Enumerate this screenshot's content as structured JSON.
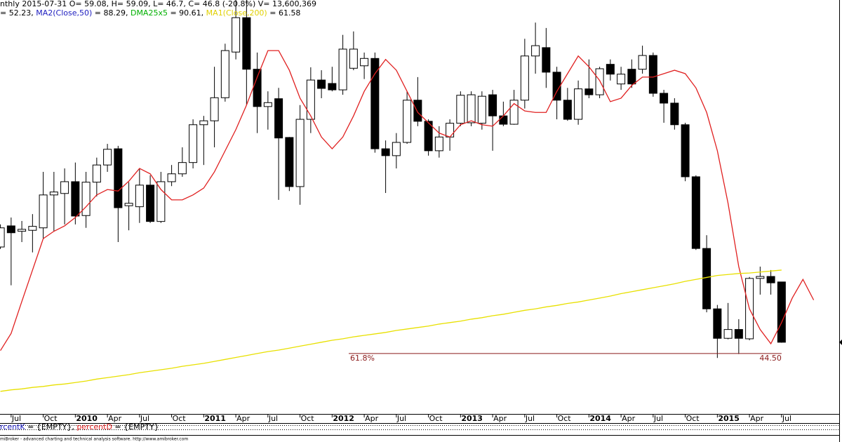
{
  "header": {
    "line1": "nthly 2015-07-31 O= 59.08, H= 59.09, L= 46.7, C= 46.8 (-20.8%) V= 13,600,369",
    "line2": [
      {
        "text": "= 52.23, ",
        "color": "#000000"
      },
      {
        "text": "MA2(Close,50)",
        "color": "#2020c0"
      },
      {
        "text": " = 88.29, ",
        "color": "#000000"
      },
      {
        "text": "DMA25x5",
        "color": "#00b000"
      },
      {
        "text": " = 90.61, ",
        "color": "#000000"
      },
      {
        "text": "MA1(Close,200)",
        "color": "#e0d000"
      },
      {
        "text": " = 61.58",
        "color": "#000000"
      }
    ]
  },
  "chart_data": {
    "type": "candlestick",
    "categories": [
      null,
      "Jul",
      null,
      null,
      "Oct",
      null,
      null,
      "2010",
      null,
      null,
      "Apr",
      null,
      null,
      "Jul",
      null,
      null,
      "Oct",
      null,
      null,
      "2011",
      null,
      null,
      "Apr",
      null,
      null,
      "Jul",
      null,
      null,
      "Oct",
      null,
      null,
      "2012",
      null,
      null,
      "Apr",
      null,
      null,
      "Jul",
      null,
      null,
      "Oct",
      null,
      null,
      "2013",
      null,
      null,
      "Apr",
      null,
      null,
      "Jul",
      null,
      null,
      "Oct",
      null,
      null,
      "2014",
      null,
      null,
      "Apr",
      null,
      null,
      "Jul",
      null,
      null,
      "Oct",
      null,
      null,
      "2015",
      null,
      null,
      "Apr",
      null,
      null,
      "Jul",
      null,
      null,
      null
    ],
    "up_color": "#ffffff",
    "down_color": "#000000",
    "open": [
      66.2,
      70.5,
      69.4,
      69.6,
      70.1,
      76.8,
      77.1,
      79.5,
      72.6,
      79.4,
      82.9,
      86.2,
      74.6,
      74.4,
      78.8,
      71.4,
      79.5,
      81.1,
      83.4,
      91.1,
      91.9,
      96.6,
      105.9,
      112.9,
      102.4,
      94.8,
      96.4,
      88.5,
      78.5,
      92.2,
      100.2,
      99.5,
      98.2,
      102.6,
      103.1,
      104.6,
      86.2,
      84.8,
      87.5,
      96.1,
      91.8,
      85.8,
      88.6,
      91.4,
      91.5,
      91.4,
      97.2,
      92.9,
      91.2,
      96.1,
      105.1,
      106.8,
      101.8,
      96.1,
      92.2,
      98.4,
      97.2,
      103.4,
      99.4,
      102.4,
      102.4,
      105.2,
      97.5,
      95.5,
      91.1,
      80.5,
      65.9,
      53.6,
      47.6,
      49.4,
      47.5,
      59.8,
      60.2,
      59.08,
      null,
      null,
      null
    ],
    "high": [
      70.8,
      72.2,
      71.5,
      72.9,
      81.5,
      81.5,
      82.2,
      83.4,
      81.5,
      84.4,
      87.2,
      86.8,
      79.4,
      82.2,
      80.8,
      81.5,
      82.9,
      86.5,
      92.2,
      92.9,
      102.9,
      107.6,
      116.5,
      116.5,
      105.8,
      97.9,
      98.6,
      88.6,
      95.1,
      102.8,
      102.2,
      102.9,
      109.4,
      110.1,
      105.8,
      105.8,
      87.9,
      89.4,
      97.9,
      100.8,
      92.2,
      90.8,
      92.2,
      97.9,
      97.9,
      97.9,
      98.2,
      95.8,
      98.2,
      108.6,
      111.9,
      110.8,
      102.9,
      98.6,
      100.1,
      104.4,
      102.9,
      104.4,
      102.9,
      104.4,
      107.2,
      105.8,
      98.2,
      96.5,
      91.5,
      80.8,
      68.6,
      54.4,
      54.8,
      51.5,
      60.1,
      62.2,
      61.5,
      59.09,
      null,
      null,
      null
    ],
    "low": [
      65.8,
      58.4,
      67.2,
      65.1,
      67.9,
      69.4,
      70.8,
      70.8,
      70.1,
      76.5,
      81.5,
      67.2,
      69.6,
      71.1,
      71.1,
      71.1,
      78.6,
      80.5,
      82.2,
      82.9,
      86.5,
      95.8,
      104.4,
      95.1,
      89.4,
      90.1,
      75.8,
      77.6,
      74.8,
      89.4,
      96.5,
      97.9,
      97.2,
      102.2,
      100.4,
      85.4,
      77.2,
      82.2,
      87.2,
      90.8,
      84.8,
      84.4,
      85.8,
      90.8,
      90.8,
      90.1,
      85.8,
      90.8,
      91.1,
      94.4,
      101.5,
      98.6,
      92.2,
      91.9,
      91.1,
      96.5,
      96.5,
      100.1,
      98.2,
      98.6,
      101.5,
      96.8,
      91.5,
      90.1,
      79.6,
      65.6,
      52.9,
      43.6,
      47.4,
      44.4,
      47.2,
      56.5,
      56.5,
      46.7,
      null,
      null,
      null
    ],
    "close": [
      70.1,
      69.1,
      69.8,
      70.4,
      76.8,
      77.4,
      79.5,
      72.5,
      79.4,
      82.9,
      86.1,
      74.2,
      75.1,
      78.8,
      71.4,
      79.5,
      81.1,
      83.4,
      91.1,
      91.9,
      96.6,
      106.2,
      112.9,
      102.4,
      94.8,
      95.6,
      88.4,
      78.5,
      92.2,
      100.2,
      98.5,
      98.2,
      106.5,
      106.5,
      104.6,
      86.2,
      84.8,
      87.5,
      96.1,
      91.8,
      85.8,
      88.6,
      91.4,
      97.1,
      97.2,
      96.9,
      92.9,
      91.2,
      96.1,
      105.1,
      107.2,
      101.8,
      96.1,
      92.2,
      98.4,
      97.2,
      102.5,
      101.4,
      101.4,
      99.4,
      105.2,
      97.5,
      95.5,
      91.1,
      80.5,
      65.9,
      53.6,
      47.6,
      49.4,
      47.6,
      59.8,
      60.2,
      58.9,
      46.8,
      null,
      null,
      null
    ],
    "lines": [
      {
        "color": "#e02020",
        "values": [
          45.1,
          48.6,
          55.1,
          61.5,
          67.9,
          69.4,
          70.5,
          72.2,
          74.4,
          76.8,
          77.9,
          77.6,
          79.6,
          82.2,
          81.1,
          77.9,
          75.8,
          75.8,
          76.8,
          78.2,
          81.5,
          85.8,
          90.1,
          95.1,
          100.8,
          106.2,
          106.2,
          102.2,
          96.5,
          92.9,
          88.6,
          86.2,
          88.6,
          92.9,
          97.9,
          101.5,
          104.4,
          102.2,
          97.9,
          93.6,
          91.5,
          89.4,
          88.6,
          91.1,
          91.9,
          91.1,
          90.8,
          92.9,
          95.4,
          93.9,
          93.6,
          93.6,
          97.9,
          101.5,
          105.1,
          102.9,
          100.1,
          95.8,
          96.5,
          99.1,
          100.8,
          100.8,
          101.5,
          102.2,
          101.5,
          98.6,
          93.6,
          85.8,
          75.1,
          62.2,
          53.6,
          49.4,
          46.5,
          50.8,
          55.8,
          59.6,
          55.4
        ]
      },
      {
        "color": "#e8e000",
        "values": [
          36.8,
          37.1,
          37.3,
          37.6,
          37.8,
          38.1,
          38.3,
          38.6,
          38.9,
          39.3,
          39.6,
          39.9,
          40.2,
          40.6,
          40.9,
          41.2,
          41.5,
          41.9,
          42.2,
          42.5,
          42.9,
          43.3,
          43.7,
          44.1,
          44.5,
          44.9,
          45.2,
          45.6,
          46.0,
          46.4,
          46.8,
          47.2,
          47.5,
          47.9,
          48.2,
          48.5,
          48.8,
          49.2,
          49.5,
          49.8,
          50.1,
          50.5,
          50.8,
          51.1,
          51.5,
          51.8,
          52.2,
          52.5,
          52.9,
          53.3,
          53.6,
          54.0,
          54.3,
          54.7,
          55.0,
          55.4,
          55.8,
          56.2,
          56.7,
          57.1,
          57.5,
          57.9,
          58.3,
          58.7,
          59.2,
          59.6,
          60.0,
          60.4,
          60.6,
          60.8,
          60.9,
          61.1,
          61.3,
          61.5,
          null,
          null,
          null
        ]
      }
    ],
    "annotations": [
      {
        "label": "61.8%",
        "value": 44.5,
        "value_label": "44.50",
        "color": "#8b1a1a"
      }
    ],
    "ylim": [
      32.2,
      116.5
    ]
  },
  "indicator_pane": [
    {
      "text": "rcentK",
      "color": "#2020c0"
    },
    {
      "text": " = {EMPTY}, ",
      "color": "#000000"
    },
    {
      "text": "percentD",
      "color": "#e02020"
    },
    {
      "text": " = {EMPTY}",
      "color": "#000000"
    }
  ],
  "footer": "miBroker - advanced charting and technical analysis software. http://www.amibroker.com"
}
